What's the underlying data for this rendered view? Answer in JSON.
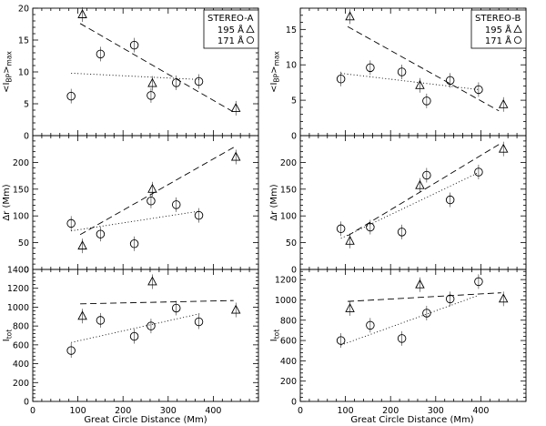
{
  "figure": {
    "xlabel": "Great Circle Distance (Mm)"
  },
  "chart_data": [
    {
      "id": "A-top",
      "column": "A",
      "row": 0,
      "type": "scatter",
      "ylabel": "<I_BP>_max",
      "ylim": [
        0,
        20
      ],
      "xlim": [
        0,
        500
      ],
      "xticks": [
        0,
        100,
        200,
        300,
        400
      ],
      "yticks": [
        0,
        5,
        10,
        15,
        20
      ],
      "legend": {
        "title": "STEREO-A",
        "entries": [
          {
            "text": "195 Å",
            "marker": "triangle"
          },
          {
            "text": "171 Å",
            "marker": "circle"
          }
        ]
      },
      "series": [
        {
          "name": "195 Å",
          "marker": "triangle",
          "points": [
            {
              "x": 110,
              "y": 19.0
            },
            {
              "x": 265,
              "y": 8.2
            },
            {
              "x": 450,
              "y": 4.3
            }
          ],
          "fit": {
            "style": "dashed",
            "x": [
              105,
              445
            ],
            "y": [
              17.6,
              3.7
            ]
          }
        },
        {
          "name": "171 Å",
          "marker": "circle",
          "points": [
            {
              "x": 85,
              "y": 6.2
            },
            {
              "x": 150,
              "y": 12.8
            },
            {
              "x": 225,
              "y": 14.2
            },
            {
              "x": 262,
              "y": 6.3
            },
            {
              "x": 318,
              "y": 8.3
            },
            {
              "x": 368,
              "y": 8.5
            }
          ],
          "fit": {
            "style": "dotted",
            "x": [
              85,
              370
            ],
            "y": [
              9.8,
              8.8
            ]
          }
        }
      ]
    },
    {
      "id": "A-mid",
      "column": "A",
      "row": 1,
      "type": "scatter",
      "ylabel": "Δr (Mm)",
      "ylim": [
        0,
        250
      ],
      "xlim": [
        0,
        500
      ],
      "xticks": [
        0,
        100,
        200,
        300,
        400
      ],
      "yticks": [
        0,
        50,
        100,
        150,
        200
      ],
      "series": [
        {
          "name": "195 Å",
          "marker": "triangle",
          "points": [
            {
              "x": 110,
              "y": 44
            },
            {
              "x": 265,
              "y": 150
            },
            {
              "x": 450,
              "y": 210
            }
          ],
          "fit": {
            "style": "dashed",
            "x": [
              105,
              445
            ],
            "y": [
              65,
              228
            ]
          }
        },
        {
          "name": "171 Å",
          "marker": "circle",
          "points": [
            {
              "x": 85,
              "y": 86
            },
            {
              "x": 150,
              "y": 66
            },
            {
              "x": 225,
              "y": 48
            },
            {
              "x": 262,
              "y": 128
            },
            {
              "x": 318,
              "y": 121
            },
            {
              "x": 368,
              "y": 101
            }
          ],
          "fit": {
            "style": "dotted",
            "x": [
              85,
              370
            ],
            "y": [
              72,
              109
            ]
          }
        }
      ]
    },
    {
      "id": "A-bot",
      "column": "A",
      "row": 2,
      "type": "scatter",
      "ylabel": "I_tot",
      "ylim": [
        0,
        1400
      ],
      "xlim": [
        0,
        500
      ],
      "xticks": [
        0,
        100,
        200,
        300,
        400
      ],
      "yticks": [
        0,
        200,
        400,
        600,
        800,
        1000,
        1200,
        1400
      ],
      "series": [
        {
          "name": "195 Å",
          "marker": "triangle",
          "points": [
            {
              "x": 110,
              "y": 905
            },
            {
              "x": 265,
              "y": 1270
            },
            {
              "x": 450,
              "y": 970
            }
          ],
          "fit": {
            "style": "dashed",
            "x": [
              105,
              445
            ],
            "y": [
              1035,
              1070
            ]
          }
        },
        {
          "name": "171 Å",
          "marker": "circle",
          "points": [
            {
              "x": 85,
              "y": 540
            },
            {
              "x": 150,
              "y": 860
            },
            {
              "x": 225,
              "y": 690
            },
            {
              "x": 262,
              "y": 800
            },
            {
              "x": 318,
              "y": 990
            },
            {
              "x": 368,
              "y": 845
            }
          ],
          "fit": {
            "style": "dotted",
            "x": [
              85,
              370
            ],
            "y": [
              625,
              930
            ]
          }
        }
      ]
    },
    {
      "id": "B-top",
      "column": "B",
      "row": 0,
      "type": "scatter",
      "ylabel": "<I_BP>_max",
      "ylim": [
        0,
        18
      ],
      "xlim": [
        0,
        500
      ],
      "xticks": [
        0,
        100,
        200,
        300,
        400
      ],
      "yticks": [
        0,
        5,
        10,
        15
      ],
      "legend": {
        "title": "STEREO-B",
        "entries": [
          {
            "text": "195 Å",
            "marker": "triangle"
          },
          {
            "text": "171 Å",
            "marker": "circle"
          }
        ]
      },
      "series": [
        {
          "name": "195 Å",
          "marker": "triangle",
          "points": [
            {
              "x": 110,
              "y": 16.8
            },
            {
              "x": 265,
              "y": 7.1
            },
            {
              "x": 450,
              "y": 4.4
            }
          ],
          "fit": {
            "style": "dashed",
            "x": [
              105,
              440
            ],
            "y": [
              15.4,
              3.5
            ]
          }
        },
        {
          "name": "171 Å",
          "marker": "circle",
          "points": [
            {
              "x": 90,
              "y": 8.0
            },
            {
              "x": 155,
              "y": 9.6
            },
            {
              "x": 225,
              "y": 9.0
            },
            {
              "x": 280,
              "y": 4.9
            },
            {
              "x": 332,
              "y": 7.8
            },
            {
              "x": 395,
              "y": 6.5
            }
          ],
          "fit": {
            "style": "dotted",
            "x": [
              90,
              395
            ],
            "y": [
              8.8,
              6.5
            ]
          }
        }
      ]
    },
    {
      "id": "B-mid",
      "column": "B",
      "row": 1,
      "type": "scatter",
      "ylabel": "Δr (Mm)",
      "ylim": [
        0,
        250
      ],
      "xlim": [
        0,
        500
      ],
      "xticks": [
        0,
        100,
        200,
        300,
        400
      ],
      "yticks": [
        0,
        50,
        100,
        150,
        200
      ],
      "series": [
        {
          "name": "195 Å",
          "marker": "triangle",
          "points": [
            {
              "x": 110,
              "y": 53
            },
            {
              "x": 265,
              "y": 157
            },
            {
              "x": 450,
              "y": 225
            }
          ],
          "fit": {
            "style": "dashed",
            "x": [
              105,
              445
            ],
            "y": [
              63,
              236
            ]
          }
        },
        {
          "name": "171 Å",
          "marker": "circle",
          "points": [
            {
              "x": 90,
              "y": 76
            },
            {
              "x": 155,
              "y": 79
            },
            {
              "x": 225,
              "y": 70
            },
            {
              "x": 280,
              "y": 176
            },
            {
              "x": 332,
              "y": 130
            },
            {
              "x": 395,
              "y": 182
            }
          ],
          "fit": {
            "style": "dotted",
            "x": [
              90,
              395
            ],
            "y": [
              58,
              181
            ]
          }
        }
      ]
    },
    {
      "id": "B-bot",
      "column": "B",
      "row": 2,
      "type": "scatter",
      "ylabel": "I_tot",
      "ylim": [
        0,
        1300
      ],
      "xlim": [
        0,
        500
      ],
      "xticks": [
        0,
        100,
        200,
        300,
        400
      ],
      "yticks": [
        0,
        200,
        400,
        600,
        800,
        1000,
        1200
      ],
      "series": [
        {
          "name": "195 Å",
          "marker": "triangle",
          "points": [
            {
              "x": 110,
              "y": 915
            },
            {
              "x": 265,
              "y": 1150
            },
            {
              "x": 450,
              "y": 1010
            }
          ],
          "fit": {
            "style": "dashed",
            "x": [
              105,
              445
            ],
            "y": [
              985,
              1070
            ]
          }
        },
        {
          "name": "171 Å",
          "marker": "circle",
          "points": [
            {
              "x": 90,
              "y": 600
            },
            {
              "x": 155,
              "y": 750
            },
            {
              "x": 225,
              "y": 620
            },
            {
              "x": 280,
              "y": 870
            },
            {
              "x": 332,
              "y": 1010
            },
            {
              "x": 395,
              "y": 1180
            }
          ],
          "fit": {
            "style": "dotted",
            "x": [
              90,
              395
            ],
            "y": [
              555,
              1045
            ]
          }
        }
      ]
    }
  ]
}
